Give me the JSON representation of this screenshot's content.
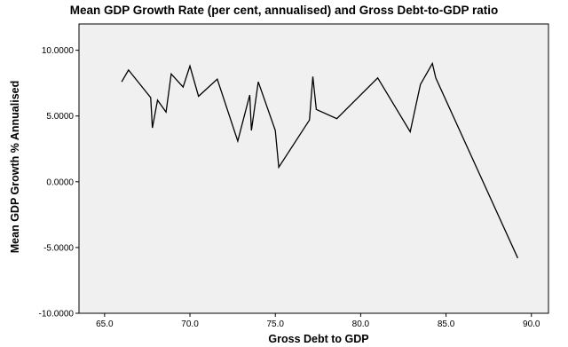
{
  "chart_data": {
    "type": "line",
    "title": "Mean GDP Growth Rate (per cent, annualised) and Gross Debt-to-GDP ratio",
    "xlabel": "Gross Debt to GDP",
    "ylabel": "Mean GDP Growth % Annualised",
    "xlim": [
      63.5,
      91.0
    ],
    "ylim": [
      -10,
      12
    ],
    "x_ticks": [
      65.0,
      70.0,
      75.0,
      80.0,
      85.0,
      90.0
    ],
    "x_tick_labels": [
      "65.0",
      "70.0",
      "75.0",
      "80.0",
      "85.0",
      "90.0"
    ],
    "y_ticks": [
      10,
      5,
      0,
      -5,
      -10
    ],
    "y_tick_labels": [
      "10.0000",
      "5.0000",
      "0.0000",
      "-5.0000",
      "-10.0000"
    ],
    "grid": false,
    "background": "#f0f0f0",
    "line_color": "#000000",
    "series": [
      {
        "x": [
          66.0,
          66.4,
          67.7,
          67.8,
          68.1,
          68.6,
          68.9,
          69.6,
          70.0,
          70.5,
          71.6,
          72.8,
          73.5,
          73.6,
          74.0,
          75.0,
          75.2,
          77.0,
          77.2,
          77.4,
          78.6,
          81.0,
          82.9,
          83.5,
          84.2,
          84.4,
          89.2
        ],
        "y": [
          7.6,
          8.5,
          6.4,
          4.1,
          6.2,
          5.3,
          8.2,
          7.2,
          8.8,
          6.5,
          7.8,
          3.1,
          6.6,
          3.9,
          7.6,
          3.9,
          1.1,
          4.7,
          8.0,
          5.5,
          4.8,
          7.9,
          3.8,
          7.4,
          9.0,
          7.9,
          -5.8
        ]
      }
    ]
  }
}
